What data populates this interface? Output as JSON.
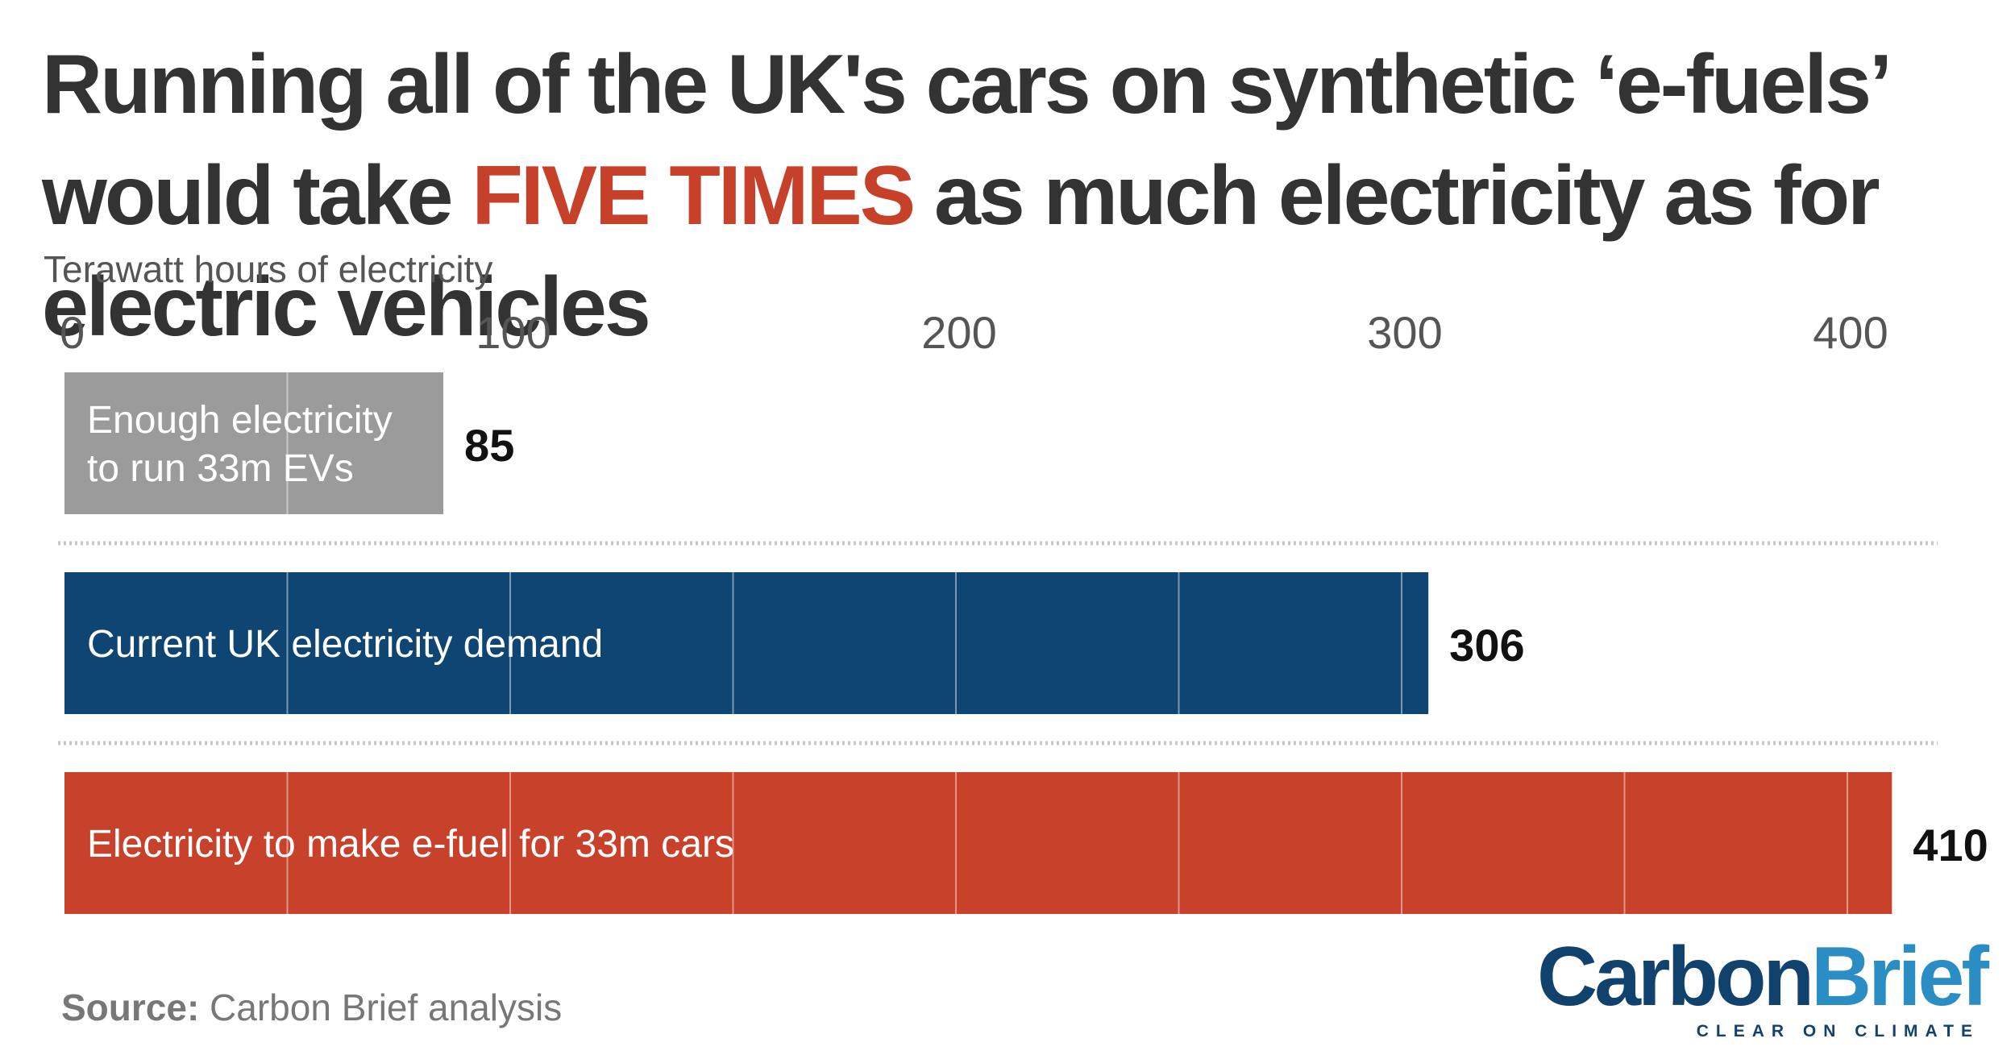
{
  "title": {
    "part1": "Running all of the UK's cars on synthetic ‘e-fuels’ would take ",
    "highlight": "FIVE TIMES",
    "part2": " as much electricity as for electric vehicles"
  },
  "subtitle": "Terawatt hours of electricity",
  "source": {
    "label": "Source:",
    "text": " Carbon Brief analysis"
  },
  "logo": {
    "carbon": "Carbon",
    "brief": "Brief",
    "tagline": "CLEAR ON CLIMATE"
  },
  "colors": {
    "ev": "#9b9b9b",
    "demand": "#0e4572",
    "efuel": "#c8412b",
    "highlight": "#c7412a",
    "title": "#333333",
    "axis_text": "#555555"
  },
  "chart_data": {
    "type": "bar",
    "orientation": "horizontal",
    "xlim": [
      0,
      410
    ],
    "ticks": [
      0,
      100,
      200,
      300,
      400
    ],
    "tick_labels": [
      "0",
      "100",
      "200",
      "300",
      "400"
    ],
    "categories": [
      "Enough electricity\nto run 33m EVs",
      "Current UK electricity demand",
      "Electricity to make e-fuel for 33m cars"
    ],
    "values": [
      85,
      306,
      410
    ],
    "value_labels": [
      "85",
      "306",
      "410"
    ],
    "bar_colors": [
      "#9b9b9b",
      "#0e4572",
      "#c8412b"
    ],
    "grid": true,
    "legend": "none"
  }
}
